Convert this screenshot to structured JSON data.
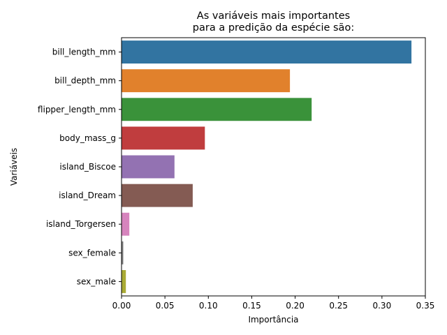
{
  "chart_data": {
    "type": "bar",
    "orientation": "horizontal",
    "title": [
      "As variáveis mais importantes",
      "para a predição da espécie são:"
    ],
    "xlabel": "Importância",
    "ylabel": "Variáveis",
    "xlim": [
      0,
      0.35
    ],
    "xticks": [
      "0.00",
      "0.05",
      "0.10",
      "0.15",
      "0.20",
      "0.25",
      "0.30",
      "0.35"
    ],
    "grid": false,
    "categories": [
      "bill_length_mm",
      "bill_depth_mm",
      "flipper_length_mm",
      "body_mass_g",
      "island_Biscoe",
      "island_Dream",
      "island_Torgersen",
      "sex_female",
      "sex_male"
    ],
    "values": [
      0.334,
      0.194,
      0.219,
      0.096,
      0.061,
      0.082,
      0.009,
      0.002,
      0.005
    ],
    "colors": [
      "#3274a1",
      "#e1812c",
      "#3a923a",
      "#c03d3e",
      "#9372b2",
      "#845b53",
      "#d684bd",
      "#7f7f7f",
      "#a9aa35"
    ]
  }
}
